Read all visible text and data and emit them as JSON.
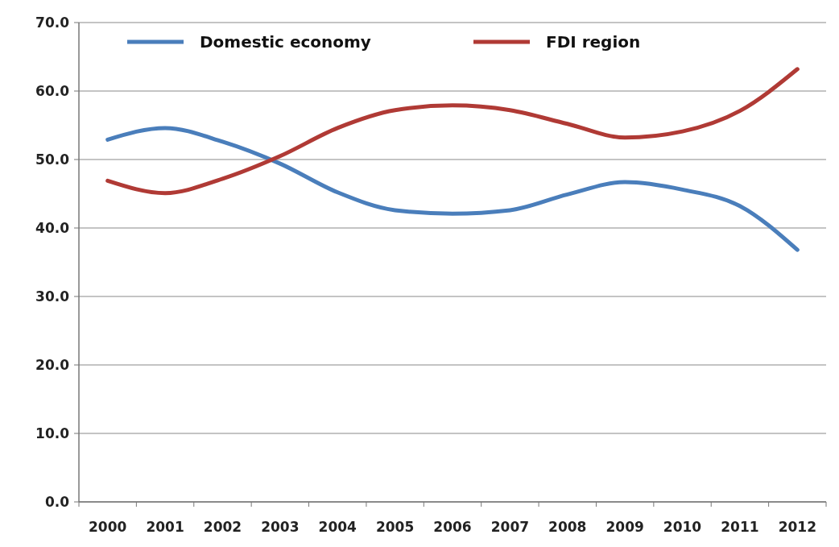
{
  "chart_data": {
    "type": "line",
    "categories": [
      "2000",
      "2001",
      "2002",
      "2003",
      "2004",
      "2005",
      "2006",
      "2007",
      "2008",
      "2009",
      "2010",
      "2011",
      "2012"
    ],
    "series": [
      {
        "name": "Domestic economy",
        "color": "#4a7ebb",
        "values": [
          52.9,
          54.6,
          52.6,
          49.4,
          45.2,
          42.6,
          42.1,
          42.6,
          44.9,
          46.7,
          45.6,
          43.2,
          36.8
        ]
      },
      {
        "name": "FDI region",
        "color": "#b03a35",
        "values": [
          46.9,
          45.1,
          47.2,
          50.5,
          54.6,
          57.2,
          57.9,
          57.2,
          55.2,
          53.2,
          54.1,
          57.1,
          63.2
        ]
      }
    ],
    "ylim": [
      0,
      70
    ],
    "yticks": [
      {
        "value": 0,
        "label": "0.0"
      },
      {
        "value": 10,
        "label": "10.0"
      },
      {
        "value": 20,
        "label": "20.0"
      },
      {
        "value": 30,
        "label": "30.0"
      },
      {
        "value": 40,
        "label": "40.0"
      },
      {
        "value": 50,
        "label": "50.0"
      },
      {
        "value": 60,
        "label": "60.0"
      },
      {
        "value": 70,
        "label": "70.0"
      }
    ],
    "grid": "y",
    "legend": "top",
    "marker": "none",
    "line_style": "solid"
  }
}
